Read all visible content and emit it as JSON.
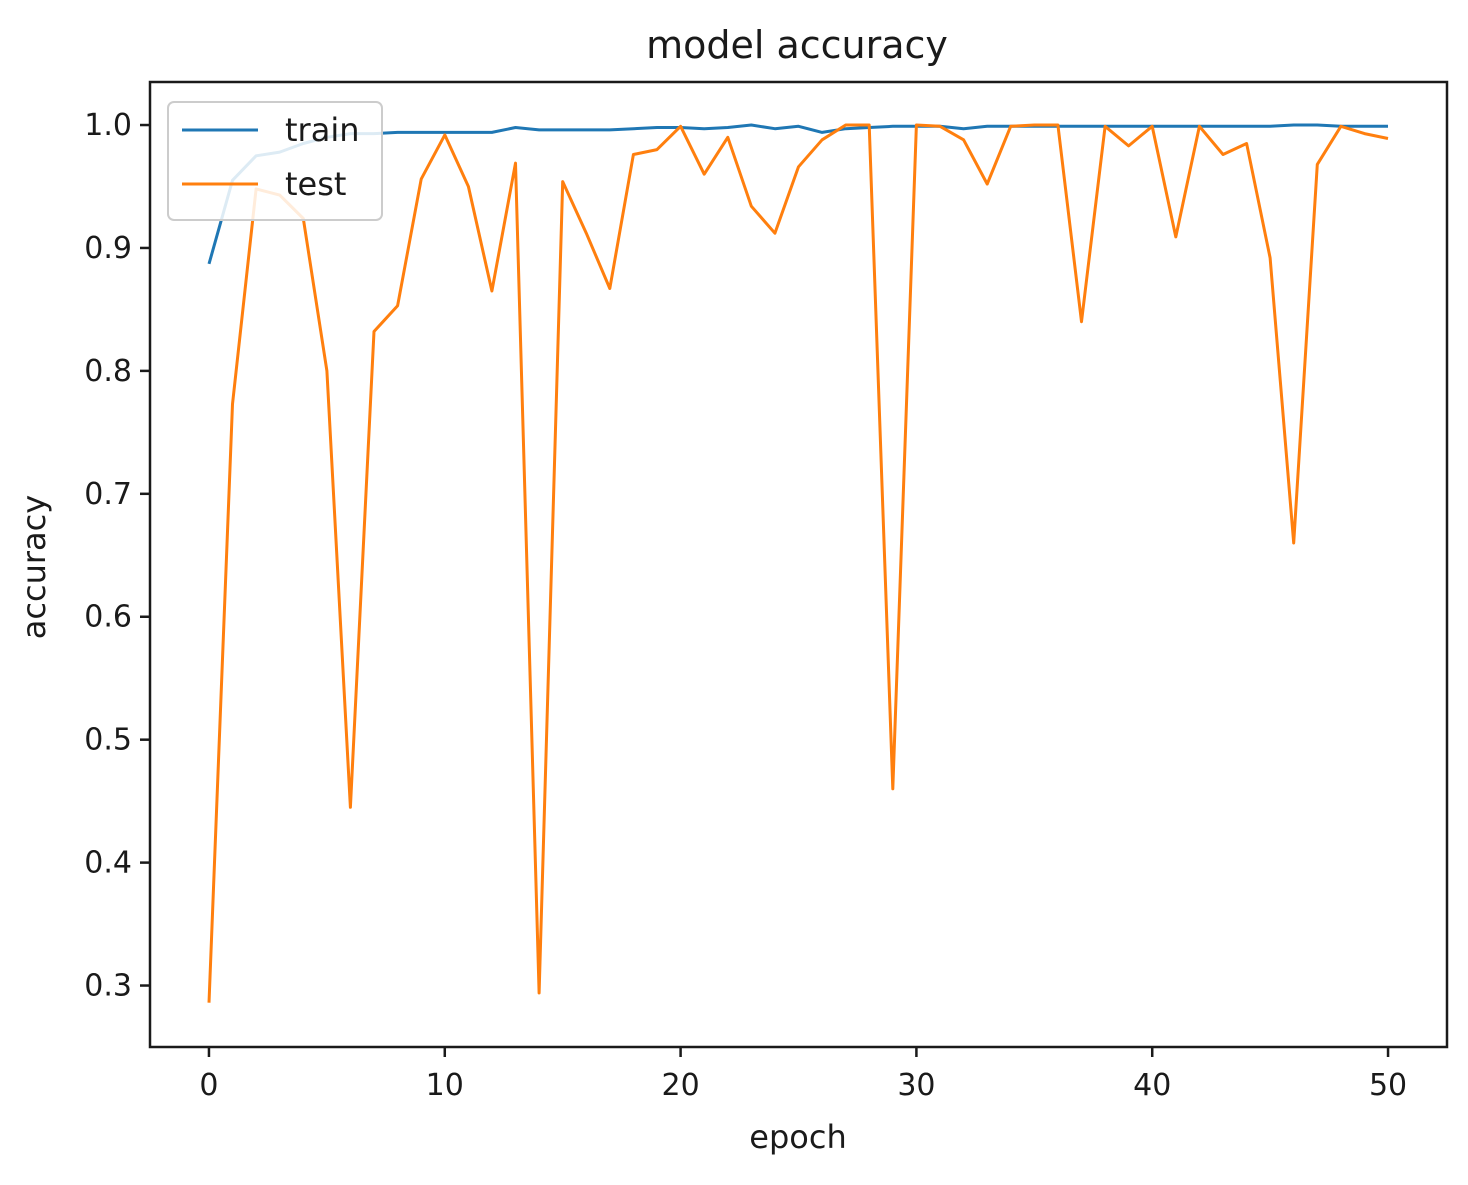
{
  "chart_data": {
    "type": "line",
    "title": "model accuracy",
    "xlabel": "epoch",
    "ylabel": "accuracy",
    "xlim": [
      -2.5,
      52.5
    ],
    "ylim": [
      0.25,
      1.035
    ],
    "xticks": [
      0,
      10,
      20,
      30,
      40,
      50
    ],
    "yticks": [
      0.3,
      0.4,
      0.5,
      0.6,
      0.7,
      0.8,
      0.9,
      1.0
    ],
    "xtick_labels": [
      "0",
      "10",
      "20",
      "30",
      "40",
      "50"
    ],
    "ytick_labels": [
      "0.3",
      "0.4",
      "0.5",
      "0.6",
      "0.7",
      "0.8",
      "0.9",
      "1.0"
    ],
    "grid": false,
    "legend_position": "top-left",
    "x": [
      0,
      1,
      2,
      3,
      4,
      5,
      6,
      7,
      8,
      9,
      10,
      11,
      12,
      13,
      14,
      15,
      16,
      17,
      18,
      19,
      20,
      21,
      22,
      23,
      24,
      25,
      26,
      27,
      28,
      29,
      30,
      31,
      32,
      33,
      34,
      35,
      36,
      37,
      38,
      39,
      40,
      41,
      42,
      43,
      44,
      45,
      46,
      47,
      48,
      49,
      50
    ],
    "series": [
      {
        "name": "train",
        "color": "#1f77b4",
        "values": [
          0.887,
          0.955,
          0.975,
          0.978,
          0.985,
          0.99,
          0.993,
          0.993,
          0.994,
          0.994,
          0.994,
          0.994,
          0.994,
          0.998,
          0.996,
          0.996,
          0.996,
          0.996,
          0.997,
          0.998,
          0.998,
          0.997,
          0.998,
          1.0,
          0.997,
          0.999,
          0.994,
          0.997,
          0.998,
          0.999,
          0.999,
          0.999,
          0.997,
          0.999,
          0.999,
          0.999,
          0.999,
          0.999,
          0.999,
          0.999,
          0.999,
          0.999,
          0.999,
          0.999,
          0.999,
          0.999,
          1.0,
          1.0,
          0.999,
          0.999,
          0.999
        ]
      },
      {
        "name": "test",
        "color": "#ff7f0e",
        "values": [
          0.286,
          0.773,
          0.948,
          0.943,
          0.924,
          0.8,
          0.445,
          0.832,
          0.853,
          0.956,
          0.992,
          0.95,
          0.865,
          0.969,
          0.294,
          0.954,
          0.912,
          0.867,
          0.976,
          0.98,
          0.999,
          0.96,
          0.99,
          0.934,
          0.912,
          0.966,
          0.988,
          1.0,
          1.0,
          0.46,
          1.0,
          0.999,
          0.988,
          0.952,
          0.999,
          1.0,
          1.0,
          0.84,
          0.999,
          0.983,
          0.999,
          0.909,
          0.999,
          0.976,
          0.985,
          0.892,
          0.66,
          0.968,
          0.999,
          0.993,
          0.989
        ]
      }
    ]
  }
}
